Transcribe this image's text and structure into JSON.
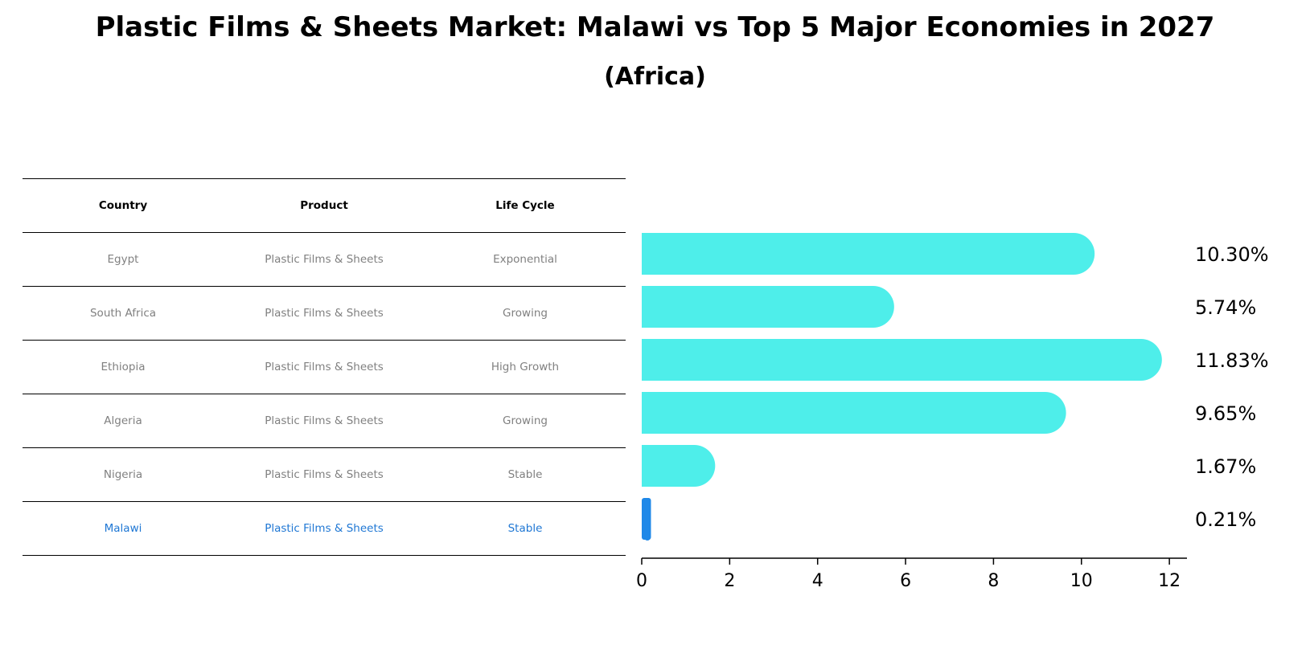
{
  "chart_data": {
    "type": "bar",
    "orientation": "horizontal",
    "title": "Plastic Films & Sheets Market: Malawi vs Top 5 Major Economies in 2027",
    "subtitle": "(Africa)",
    "categories": [
      "Egypt",
      "South Africa",
      "Ethiopia",
      "Algeria",
      "Nigeria",
      "Malawi"
    ],
    "values": [
      10.3,
      5.74,
      11.83,
      9.65,
      1.67,
      0.21
    ],
    "labels": [
      "10.30%",
      "5.74%",
      "11.83%",
      "9.65%",
      "1.67%",
      "0.21%"
    ],
    "highlight": "Malawi",
    "xlim": [
      0,
      12.4
    ],
    "xticks": [
      0,
      2,
      4,
      6,
      8,
      10,
      12
    ],
    "xtick_labels": [
      "0",
      "2",
      "4",
      "6",
      "8",
      "10",
      "12"
    ],
    "colors": {
      "bar": "#4eeeea",
      "highlight": "#1f88e8",
      "highlight_text": "#1f77d4",
      "muted_text": "#808080"
    }
  },
  "table": {
    "headers": [
      "Country",
      "Product",
      "Life Cycle"
    ],
    "rows": [
      [
        "Egypt",
        "Plastic Films & Sheets",
        "Exponential"
      ],
      [
        "South Africa",
        "Plastic Films & Sheets",
        "Growing"
      ],
      [
        "Ethiopia",
        "Plastic Films & Sheets",
        "High Growth"
      ],
      [
        "Algeria",
        "Plastic Films & Sheets",
        "Growing"
      ],
      [
        "Nigeria",
        "Plastic Films & Sheets",
        "Stable"
      ],
      [
        "Malawi",
        "Plastic Films & Sheets",
        "Stable"
      ]
    ]
  }
}
